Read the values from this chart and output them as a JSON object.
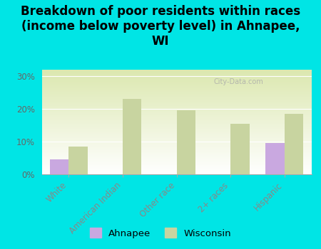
{
  "title": "Breakdown of poor residents within races\n(income below poverty level) in Ahnapee,\nWI",
  "categories": [
    "White",
    "American Indian",
    "Other race",
    "2+ races",
    "Hispanic"
  ],
  "ahnapee_values": [
    4.5,
    0,
    0,
    0,
    9.5
  ],
  "wisconsin_values": [
    8.5,
    23.0,
    19.5,
    15.5,
    18.5
  ],
  "ahnapee_color": "#c9a8e0",
  "wisconsin_color": "#c8d4a0",
  "background_color": "#00e5e5",
  "watermark": "City-Data.com",
  "ylim": [
    0,
    32
  ],
  "yticks": [
    0,
    10,
    20,
    30
  ],
  "ytick_labels": [
    "0%",
    "10%",
    "20%",
    "30%"
  ],
  "bar_width": 0.35,
  "title_fontsize": 12,
  "tick_fontsize": 8.5,
  "legend_fontsize": 9.5
}
